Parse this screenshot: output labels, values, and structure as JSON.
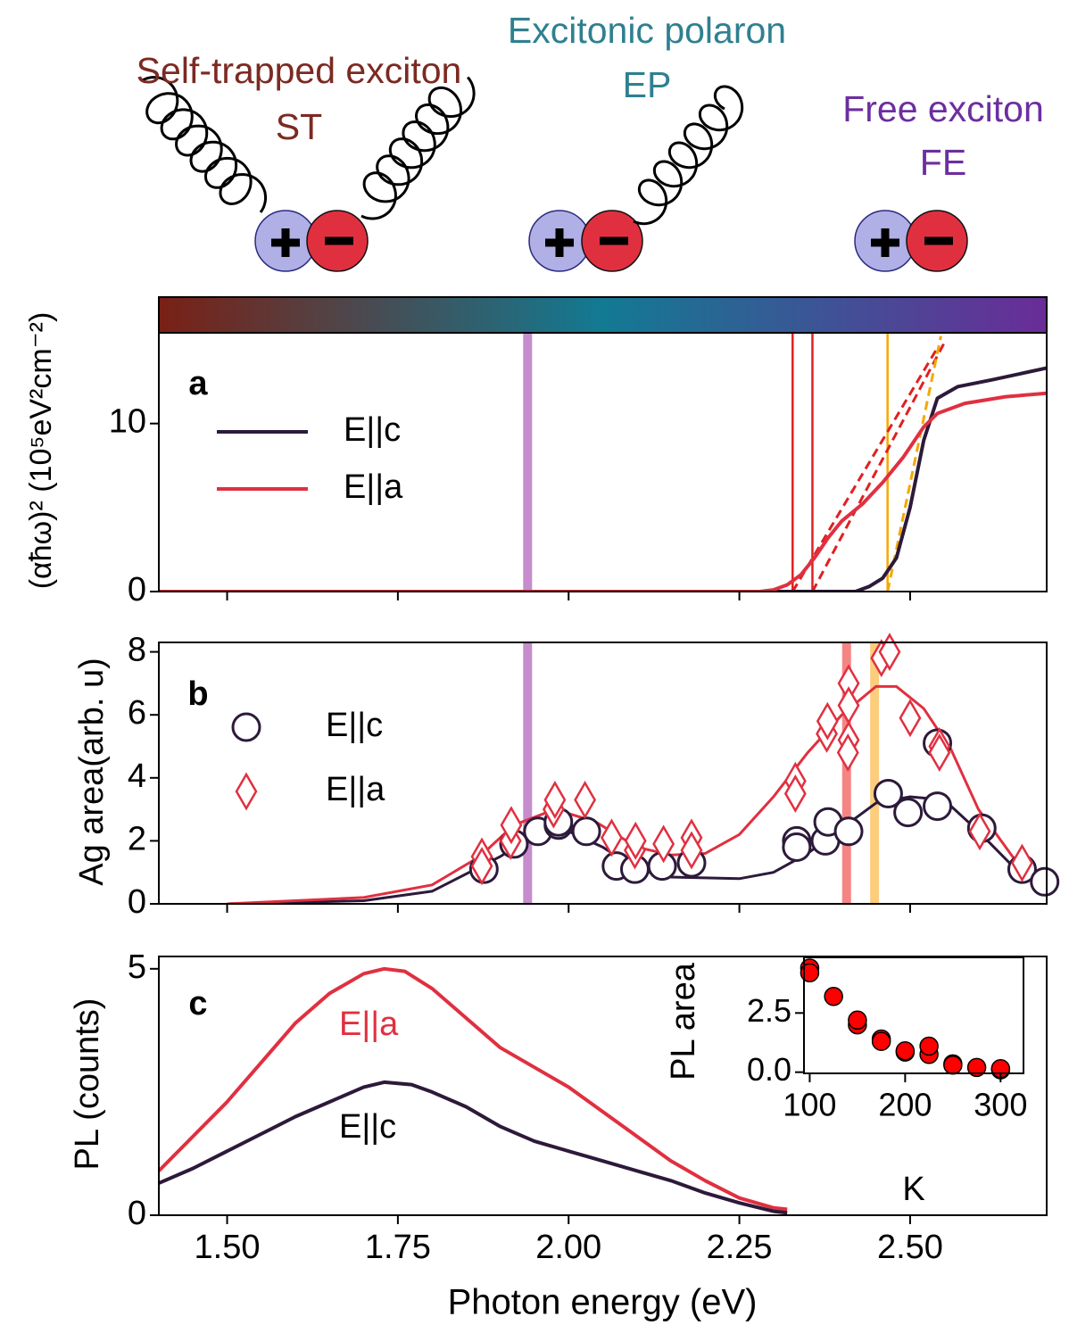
{
  "diagram": {
    "labels": [
      {
        "text": "Self-trapped exciton",
        "color": "#7b2a22"
      },
      {
        "text": "ST",
        "color": "#7b2a22"
      },
      {
        "text": "Excitonic polaron",
        "color": "#2e8090"
      },
      {
        "text": "EP",
        "color": "#2e8090"
      },
      {
        "text": "Free exciton",
        "color": "#6c2ea0"
      },
      {
        "text": "FE",
        "color": "#6c2ea0"
      }
    ],
    "colorbar": [
      "#7a2015",
      "#127a93",
      "#6a2c98"
    ]
  },
  "chart_data": [
    {
      "type": "line",
      "panel": "a",
      "ylabel": "(αħω)² (10⁵eV²cm⁻²)",
      "xlim": [
        1.4,
        2.7
      ],
      "ylim": [
        0,
        15.4
      ],
      "xticks": [
        1.5,
        1.75,
        2.0,
        2.25,
        2.5
      ],
      "yticks": [
        0,
        10
      ],
      "bands": [
        {
          "x": 1.94,
          "color": "#c080c8"
        }
      ],
      "vlines": [
        {
          "x": 2.328,
          "color": "#e02020"
        },
        {
          "x": 2.357,
          "color": "#e02020"
        },
        {
          "x": 2.467,
          "color": "#f5a800"
        }
      ],
      "series": [
        {
          "name": "E||c",
          "color": "#2d1a3a",
          "x": [
            1.4,
            2.42,
            2.44,
            2.46,
            2.48,
            2.5,
            2.52,
            2.54,
            2.57,
            2.62,
            2.7
          ],
          "values": [
            0,
            0,
            0.3,
            0.8,
            2,
            5,
            9,
            11.5,
            12.2,
            12.6,
            13.3
          ]
        },
        {
          "name": "E||a",
          "color": "#e03040",
          "x": [
            1.4,
            2.28,
            2.3,
            2.32,
            2.34,
            2.36,
            2.38,
            2.4,
            2.43,
            2.46,
            2.49,
            2.52,
            2.54,
            2.58,
            2.64,
            2.7
          ],
          "values": [
            0,
            0,
            0.1,
            0.4,
            1,
            2,
            3.2,
            4.2,
            5.2,
            6.5,
            8,
            9.8,
            10.6,
            11.2,
            11.6,
            11.8
          ]
        }
      ],
      "fits": [
        {
          "color": "#e02020",
          "x": [
            2.328,
            2.54
          ],
          "values": [
            0,
            14.5
          ]
        },
        {
          "color": "#e02020",
          "x": [
            2.357,
            2.55
          ],
          "values": [
            0,
            14.8
          ]
        },
        {
          "color": "#f5a800",
          "x": [
            2.467,
            2.545
          ],
          "values": [
            0,
            15.2
          ]
        }
      ]
    },
    {
      "type": "scatter",
      "panel": "b",
      "ylabel": "Ag area(arb. u)",
      "xlim": [
        1.4,
        2.7
      ],
      "ylim": [
        0,
        8.3
      ],
      "xticks": [
        1.5,
        1.75,
        2.0,
        2.25,
        2.5
      ],
      "yticks": [
        0,
        2,
        4,
        6,
        8
      ],
      "bands": [
        {
          "x": 1.94,
          "color": "#c080c8"
        },
        {
          "x": 2.407,
          "color": "#f47878"
        },
        {
          "x": 2.448,
          "color": "#fdc870"
        }
      ],
      "series": [
        {
          "name": "E||c",
          "color": "#2d1a3a",
          "marker": "circle",
          "x": [
            1.876,
            1.92,
            1.955,
            1.985,
            1.985,
            2.026,
            2.07,
            2.097,
            2.137,
            2.18,
            2.334,
            2.334,
            2.376,
            2.38,
            2.41,
            2.468,
            2.497,
            2.54,
            2.54,
            2.605,
            2.664,
            2.697
          ],
          "values": [
            1.1,
            1.9,
            2.3,
            2.5,
            2.6,
            2.3,
            1.2,
            1.1,
            1.2,
            1.3,
            2.0,
            1.8,
            2.0,
            2.6,
            2.3,
            3.5,
            2.9,
            3.1,
            5.1,
            2.4,
            1.1,
            0.7
          ]
        },
        {
          "name": "E||a",
          "color": "#e03040",
          "marker": "diamond",
          "x": [
            1.873,
            1.873,
            1.915,
            1.916,
            1.978,
            1.98,
            2.024,
            2.063,
            2.097,
            2.098,
            2.139,
            2.18,
            2.18,
            2.332,
            2.332,
            2.378,
            2.379,
            2.41,
            2.41,
            2.41,
            2.409,
            2.458,
            2.47,
            2.5,
            2.543,
            2.543,
            2.602,
            2.664
          ],
          "values": [
            1.5,
            1.2,
            2.0,
            2.5,
            3.0,
            3.3,
            3.3,
            2.1,
            1.7,
            2.0,
            1.9,
            2.1,
            1.7,
            3.9,
            3.5,
            5.4,
            5.8,
            7.0,
            6.3,
            5.2,
            4.8,
            7.8,
            8.0,
            5.9,
            5.0,
            4.8,
            2.3,
            1.3
          ]
        }
      ],
      "fits": [
        {
          "color": "#2d1a3a",
          "x": [
            1.5,
            1.7,
            1.8,
            1.9,
            1.95,
            2.0,
            2.05,
            2.1,
            2.15,
            2.25,
            2.3,
            2.35,
            2.4,
            2.45,
            2.5,
            2.55,
            2.6,
            2.65,
            2.7
          ],
          "values": [
            0,
            0.1,
            0.4,
            1.5,
            2.2,
            2.3,
            1.8,
            1.1,
            0.85,
            0.8,
            1.0,
            1.6,
            2.4,
            3.2,
            3.4,
            3.3,
            2.3,
            1.2,
            0.5
          ]
        },
        {
          "color": "#e03040",
          "x": [
            1.5,
            1.7,
            1.8,
            1.87,
            1.92,
            1.98,
            2.04,
            2.1,
            2.15,
            2.2,
            2.25,
            2.3,
            2.35,
            2.4,
            2.45,
            2.48,
            2.52,
            2.56,
            2.6,
            2.65,
            2.7
          ],
          "values": [
            0,
            0.2,
            0.6,
            1.5,
            2.5,
            3.0,
            2.6,
            1.8,
            1.55,
            1.6,
            2.2,
            3.4,
            4.8,
            6.0,
            6.9,
            6.9,
            6.2,
            4.9,
            3.0,
            1.5,
            0.6
          ]
        }
      ]
    },
    {
      "type": "line",
      "panel": "c",
      "ylabel": "PL (counts)",
      "xlabel": "Photon energy (eV)",
      "xlim": [
        1.4,
        2.7
      ],
      "ylim": [
        0,
        5.25
      ],
      "xticks": [
        {
          "value": 1.5,
          "label": "1.50"
        },
        1.75,
        {
          "value": 2.0,
          "label": "2.00"
        },
        2.25,
        {
          "value": 2.5,
          "label": "2.50"
        }
      ],
      "yticks": [
        0,
        5
      ],
      "series": [
        {
          "name": "E||a",
          "color": "#e03040",
          "x": [
            1.4,
            1.45,
            1.5,
            1.55,
            1.6,
            1.65,
            1.7,
            1.73,
            1.76,
            1.8,
            1.85,
            1.9,
            1.95,
            2.0,
            2.05,
            2.1,
            2.15,
            2.2,
            2.25,
            2.3,
            2.32
          ],
          "values": [
            0.9,
            1.6,
            2.3,
            3.1,
            3.9,
            4.5,
            4.9,
            5.0,
            4.95,
            4.6,
            4.0,
            3.4,
            3.0,
            2.6,
            2.1,
            1.6,
            1.1,
            0.7,
            0.35,
            0.15,
            0.12
          ]
        },
        {
          "name": "E||c",
          "color": "#2d1a3a",
          "x": [
            1.4,
            1.45,
            1.5,
            1.55,
            1.6,
            1.65,
            1.7,
            1.73,
            1.77,
            1.8,
            1.85,
            1.9,
            1.95,
            2.0,
            2.05,
            2.1,
            2.15,
            2.2,
            2.25,
            2.3,
            2.32
          ],
          "values": [
            0.65,
            0.95,
            1.3,
            1.65,
            2.0,
            2.3,
            2.6,
            2.7,
            2.65,
            2.5,
            2.2,
            1.8,
            1.5,
            1.3,
            1.1,
            0.9,
            0.7,
            0.45,
            0.25,
            0.08,
            0.05
          ]
        }
      ]
    },
    {
      "type": "scatter",
      "ylabel": "PL area",
      "xlabel": "K",
      "xlim": [
        94,
        324
      ],
      "ylim": [
        -0.05,
        4.85
      ],
      "xticks": [
        100,
        200,
        300
      ],
      "yticks": [
        {
          "value": 0,
          "label": "0.0"
        },
        2.5
      ],
      "series": [
        {
          "color": "#ff0000",
          "edgecolor": "#000000",
          "marker": "circle",
          "x": [
            100,
            100,
            125,
            150,
            150,
            175,
            175,
            200,
            200,
            225,
            225,
            250,
            250,
            275,
            300,
            300
          ],
          "values": [
            4.4,
            4.2,
            3.2,
            2.0,
            2.2,
            1.4,
            1.3,
            0.85,
            0.9,
            0.75,
            1.1,
            0.35,
            0.3,
            0.2,
            0.1,
            0.15
          ]
        }
      ]
    }
  ]
}
